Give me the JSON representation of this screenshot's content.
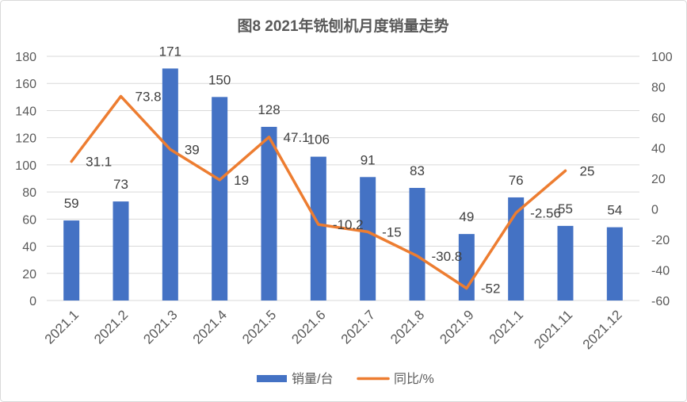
{
  "chart_data": {
    "type": "bar",
    "title": "图8 2021年铣刨机月度销量走势",
    "categories": [
      "2021.1",
      "2021.2",
      "2021.3",
      "2021.4",
      "2021.5",
      "2021.6",
      "2021.7",
      "2021.8",
      "2021.9",
      "2021.1",
      "2021.11",
      "2021.12"
    ],
    "series": [
      {
        "name": "销量/台",
        "type": "bar",
        "secondary_axis": false,
        "color": "#4472C4",
        "values": [
          59,
          73,
          171,
          150,
          128,
          106,
          91,
          83,
          49,
          76,
          55,
          54
        ]
      },
      {
        "name": "同比/%",
        "type": "line",
        "secondary_axis": true,
        "color": "#ED7D31",
        "values": [
          31.1,
          73.8,
          39,
          19,
          47.1,
          -10.2,
          -15,
          -30.8,
          -52,
          -2.56,
          25,
          null
        ]
      }
    ],
    "y_left": {
      "min": 0,
      "max": 180,
      "ticks": [
        0,
        20,
        40,
        60,
        80,
        100,
        120,
        140,
        160,
        180
      ]
    },
    "y_right": {
      "min": -60,
      "max": 100,
      "ticks": [
        -60,
        -40,
        -20,
        0,
        20,
        40,
        60,
        80,
        100
      ]
    },
    "grid": true,
    "legend": "bottom"
  }
}
